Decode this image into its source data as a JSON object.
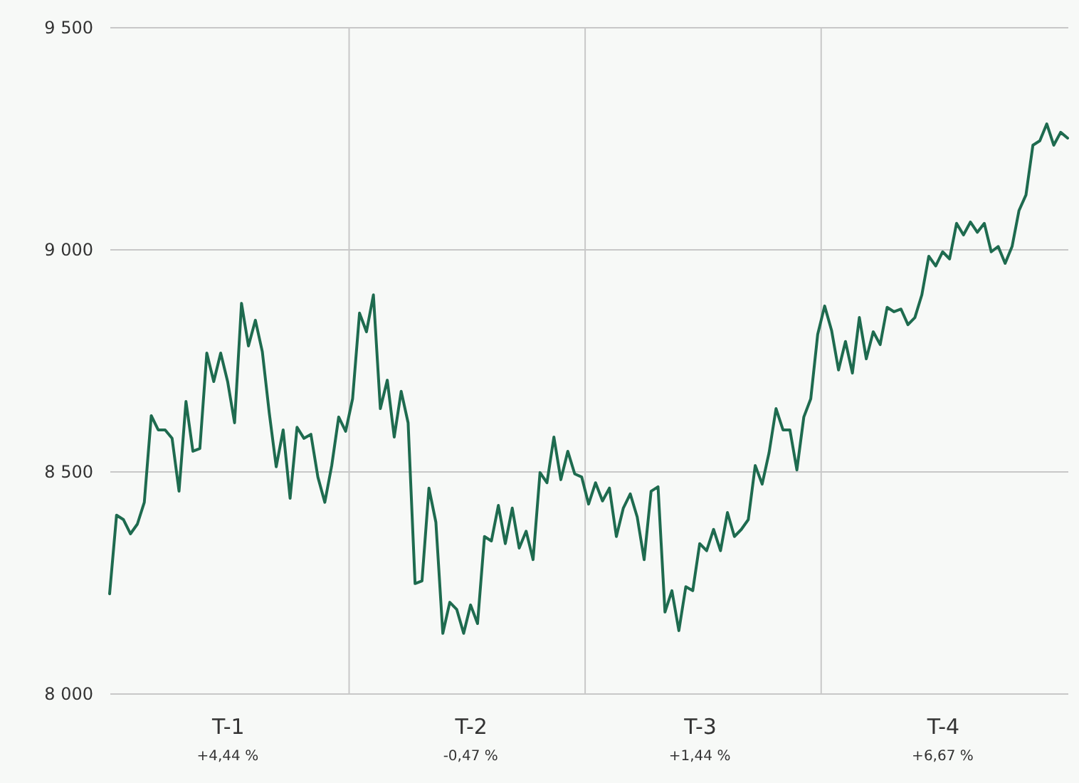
{
  "chart_data": {
    "type": "line",
    "categories": [
      null,
      null,
      null,
      null,
      null,
      null,
      null,
      null,
      null,
      null,
      null,
      null,
      null,
      null,
      null,
      null,
      null,
      "T-1",
      null,
      null,
      null,
      null,
      null,
      null,
      null,
      null,
      null,
      null,
      null,
      null,
      null,
      null,
      null,
      null,
      null,
      null,
      null,
      null,
      null,
      null,
      null,
      null,
      null,
      null,
      null,
      null,
      null,
      null,
      null,
      null,
      null,
      null,
      "T-2",
      null,
      null,
      null,
      null,
      null,
      null,
      null,
      null,
      null,
      null,
      null,
      null,
      null,
      null,
      null,
      null,
      null,
      null,
      null,
      null,
      null,
      null,
      null,
      null,
      null,
      null,
      null,
      null,
      null,
      null,
      null,
      null,
      "T-3",
      null,
      null,
      null,
      null,
      null,
      null,
      null,
      null,
      null,
      null,
      null,
      null,
      null,
      null,
      null,
      null,
      null,
      null,
      null,
      null,
      null,
      null,
      null,
      null,
      null,
      null,
      null,
      null,
      null,
      null,
      null,
      null,
      null,
      null,
      "T-4",
      null,
      null,
      null,
      null,
      null,
      null,
      null,
      null,
      null,
      null,
      null,
      null,
      null,
      null,
      null,
      null,
      null,
      null
    ],
    "series": [
      {
        "color": "#1e6b4f",
        "values": [
          8224,
          8401,
          8391,
          8359,
          8381,
          8430,
          8625,
          8593,
          8593,
          8574,
          8455,
          8657,
          8545,
          8551,
          8766,
          8702,
          8766,
          8702,
          8609,
          8878,
          8782,
          8840,
          8769,
          8631,
          8510,
          8593,
          8439,
          8599,
          8574,
          8583,
          8487,
          8430,
          8513,
          8622,
          8590,
          8663,
          8856,
          8814,
          8897,
          8641,
          8705,
          8577,
          8680,
          8609,
          8247,
          8253,
          8462,
          8385,
          8135,
          8205,
          8189,
          8135,
          8199,
          8157,
          8353,
          8343,
          8423,
          8337,
          8417,
          8327,
          8365,
          8301,
          8497,
          8474,
          8577,
          8481,
          8545,
          8494,
          8487,
          8426,
          8474,
          8433,
          8462,
          8353,
          8417,
          8449,
          8397,
          8301,
          8455,
          8465,
          8183,
          8231,
          8141,
          8240,
          8231,
          8337,
          8321,
          8369,
          8321,
          8407,
          8353,
          8369,
          8391,
          8513,
          8471,
          8542,
          8641,
          8593,
          8593,
          8503,
          8622,
          8663,
          8808,
          8872,
          8817,
          8728,
          8792,
          8721,
          8846,
          8753,
          8814,
          8785,
          8869,
          8859,
          8865,
          8830,
          8846,
          8897,
          8984,
          8962,
          8994,
          8978,
          9058,
          9032,
          9061,
          9038,
          9058,
          8994,
          9006,
          8968,
          9006,
          9087,
          9122,
          9234,
          9244,
          9282,
          9234,
          9263,
          9250
        ]
      }
    ],
    "ylim": [
      8000,
      9500
    ],
    "yticks": [
      {
        "value": 8000,
        "label": "8 000"
      },
      {
        "value": 8500,
        "label": "8 500"
      },
      {
        "value": 9000,
        "label": "9 000"
      },
      {
        "value": 9500,
        "label": "9 500"
      }
    ],
    "annotations": [
      "+4,44 %",
      "-0,47 %",
      "+1,44 %",
      "+6,67 %"
    ],
    "grid": true,
    "marker": "none",
    "line_style": "solid"
  }
}
